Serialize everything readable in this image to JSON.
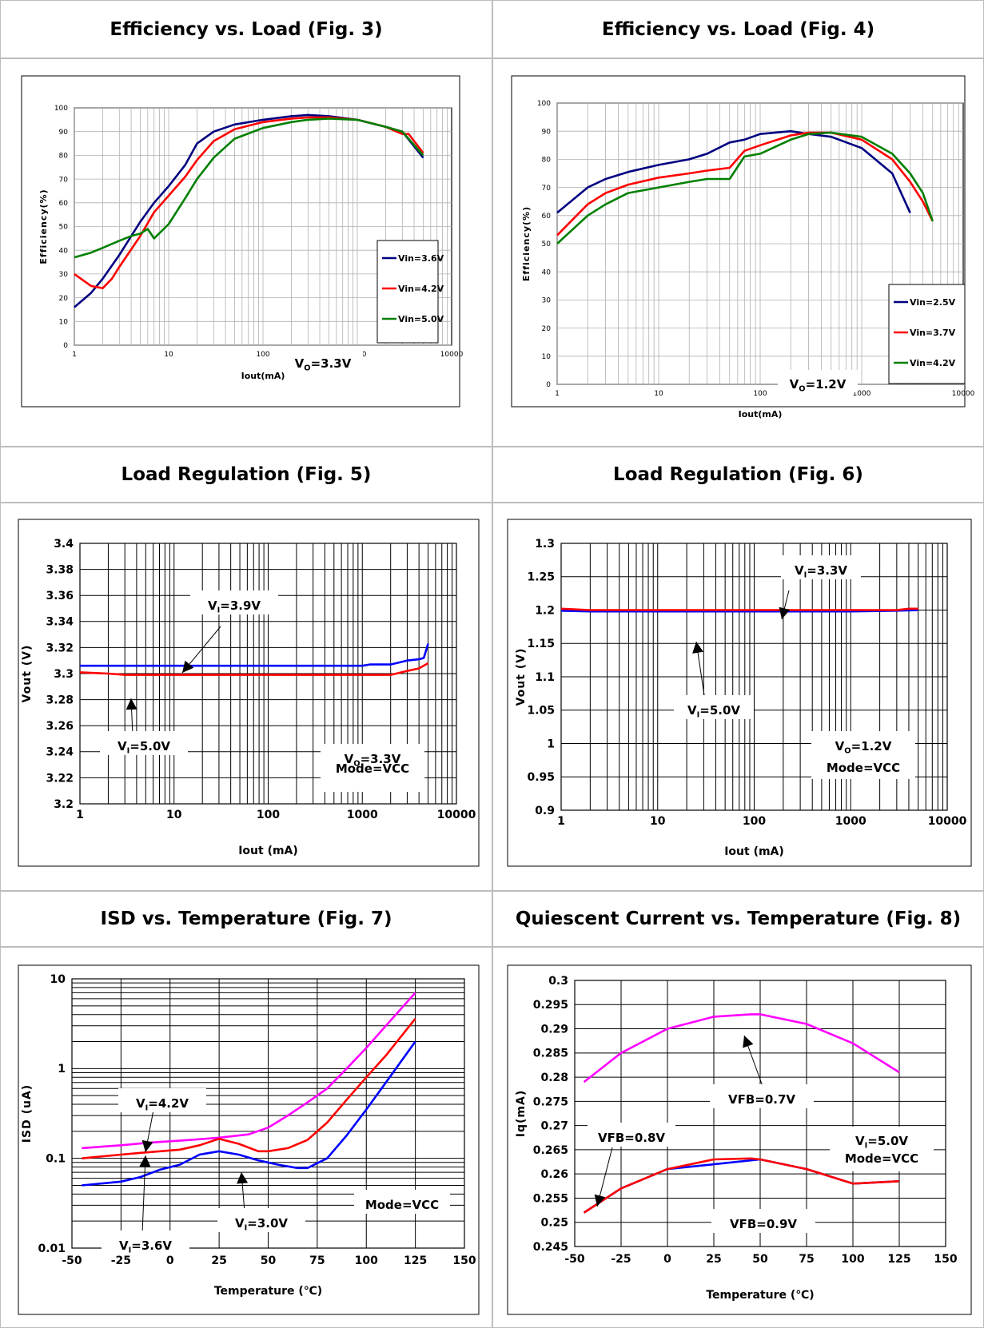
{
  "panels": [
    {
      "title": "Efficiency vs. Load (Fig. 3)",
      "chart": {
        "type": "line",
        "xscale": "log",
        "xlim": [
          1,
          10000
        ],
        "ylim": [
          0,
          100
        ],
        "xticks": [
          1,
          10,
          100,
          1000,
          10000
        ],
        "xtick_labels": [
          "1",
          "10",
          "100",
          "1000",
          "10000"
        ],
        "yticks": [
          0,
          10,
          20,
          30,
          40,
          50,
          60,
          70,
          80,
          90,
          100
        ],
        "ytick_labels": [
          "0",
          "10",
          "20",
          "30",
          "40",
          "50",
          "60",
          "70",
          "80",
          "90",
          "100"
        ],
        "xlabel": "Iout(mA)",
        "ylabel": "Efficiency(%)",
        "grid": true,
        "legend": {
          "placement": "right",
          "entries": [
            "Vin=3.6V",
            "Vin=4.2V",
            "Vin=5.0V"
          ]
        },
        "annotations": [
          {
            "text": "VO=3.3V"
          }
        ],
        "series": [
          {
            "name": "Vin=3.6V",
            "color": "#000080",
            "x": [
              1,
              1.5,
              2,
              3,
              5,
              7,
              10,
              15,
              20,
              30,
              50,
              100,
              200,
              300,
              500,
              1000,
              2000,
              3000,
              5000
            ],
            "y": [
              16,
              22,
              28,
              38,
              52,
              60,
              67,
              76,
              85,
              90,
              93,
              95,
              96.5,
              97,
              96.5,
              95,
              92,
              90,
              79
            ]
          },
          {
            "name": "Vin=4.2V",
            "color": "#ff0000",
            "x": [
              1,
              1.5,
              2,
              2.5,
              3,
              5,
              7,
              10,
              15,
              20,
              30,
              50,
              100,
              200,
              300,
              500,
              1000,
              2000,
              3000,
              3500,
              5000
            ],
            "y": [
              30,
              25,
              24,
              28,
              33,
              46,
              56,
              63,
              71,
              78,
              86,
              91,
              94,
              95.5,
              96,
              96,
              95,
              92,
              89,
              89,
              81
            ]
          },
          {
            "name": "Vin=5.0V",
            "color": "#008000",
            "x": [
              1,
              1.5,
              2,
              3,
              4,
              5,
              6,
              7,
              10,
              15,
              20,
              30,
              50,
              100,
              200,
              300,
              500,
              1000,
              2000,
              3000,
              5000
            ],
            "y": [
              37,
              39,
              41,
              44,
              46,
              47,
              49,
              45,
              51,
              62,
              70,
              79,
              87,
              91.5,
              94,
              95,
              95.5,
              95,
              92,
              90,
              80
            ]
          }
        ]
      }
    },
    {
      "title": "Efficiency vs. Load (Fig. 4)",
      "chart": {
        "type": "line",
        "xscale": "log",
        "xlim": [
          1,
          10000
        ],
        "ylim": [
          0,
          100
        ],
        "xticks": [
          1,
          10,
          100,
          1000,
          10000
        ],
        "xtick_labels": [
          "1",
          "10",
          "100",
          "1000",
          "10000"
        ],
        "yticks": [
          0,
          10,
          20,
          30,
          40,
          50,
          60,
          70,
          80,
          90,
          100
        ],
        "ytick_labels": [
          "0",
          "10",
          "20",
          "30",
          "40",
          "50",
          "60",
          "70",
          "80",
          "90",
          "100"
        ],
        "xlabel": "Iout(mA)",
        "ylabel": "Efficiency(%)",
        "grid": true,
        "legend": {
          "placement": "right",
          "entries": [
            "Vin=2.5V",
            "Vin=3.7V",
            "Vin=4.2V"
          ]
        },
        "annotations": [
          {
            "text": "VO=1.2V"
          }
        ],
        "series": [
          {
            "name": "Vin=2.5V",
            "color": "#000080",
            "x": [
              1,
              2,
              3,
              5,
              10,
              20,
              30,
              50,
              70,
              100,
              200,
              300,
              500,
              1000,
              2000,
              3000
            ],
            "y": [
              61,
              70,
              73,
              75.5,
              78,
              80,
              82,
              86,
              87,
              89,
              90,
              89,
              88,
              84,
              75,
              61
            ]
          },
          {
            "name": "Vin=3.7V",
            "color": "#ff0000",
            "x": [
              1,
              2,
              3,
              5,
              10,
              20,
              30,
              50,
              70,
              100,
              200,
              300,
              500,
              1000,
              2000,
              3000,
              4000,
              5000
            ],
            "y": [
              53,
              64,
              68,
              71,
              73.5,
              75,
              76,
              77,
              83,
              85,
              88.5,
              89.5,
              89.5,
              87,
              80,
              72,
              65,
              58
            ]
          },
          {
            "name": "Vin=4.2V",
            "color": "#008000",
            "x": [
              1,
              2,
              3,
              5,
              10,
              20,
              30,
              50,
              70,
              100,
              200,
              300,
              500,
              1000,
              2000,
              3000,
              4000,
              5000
            ],
            "y": [
              50,
              60,
              64,
              68,
              70,
              72,
              73,
              73,
              81,
              82,
              87,
              89,
              89.5,
              88,
              82,
              75,
              68,
              58
            ]
          }
        ]
      }
    },
    {
      "title": "Load Regulation (Fig. 5)",
      "chart": {
        "type": "line",
        "xscale": "log",
        "xlim": [
          1,
          10000
        ],
        "ylim": [
          3.2,
          3.4
        ],
        "xticks": [
          1,
          10,
          100,
          1000,
          10000
        ],
        "xtick_labels": [
          "1",
          "10",
          "100",
          "1000",
          "10000"
        ],
        "yticks": [
          3.2,
          3.22,
          3.24,
          3.26,
          3.28,
          3.3,
          3.32,
          3.34,
          3.36,
          3.38,
          3.4
        ],
        "ytick_labels": [
          "3.2",
          "3.22",
          "3.24",
          "3.26",
          "3.28",
          "3.3",
          "3.32",
          "3.34",
          "3.36",
          "3.38",
          "3.4"
        ],
        "xlabel": "Iout (mA)",
        "ylabel": "Vout (V)",
        "grid": true,
        "annotations": [
          {
            "text": "VI=3.9V"
          },
          {
            "text": "VI=5.0V"
          },
          {
            "text": "VO=3.3V"
          },
          {
            "text": "Mode=VCC"
          }
        ],
        "series": [
          {
            "name": "VI=3.9V",
            "color": "#0000ff",
            "x": [
              1,
              10,
              100,
              1000,
              1200,
              2000,
              3000,
              4000,
              4500,
              5000
            ],
            "y": [
              3.306,
              3.306,
              3.306,
              3.306,
              3.307,
              3.307,
              3.31,
              3.311,
              3.312,
              3.323
            ]
          },
          {
            "name": "VI=5.0V",
            "color": "#ff0000",
            "x": [
              1,
              2,
              3,
              10,
              100,
              1000,
              2000,
              3000,
              4000,
              5000
            ],
            "y": [
              3.301,
              3.3,
              3.299,
              3.299,
              3.299,
              3.299,
              3.299,
              3.302,
              3.304,
              3.308
            ]
          }
        ]
      }
    },
    {
      "title": "Load Regulation (Fig. 6)",
      "chart": {
        "type": "line",
        "xscale": "log",
        "xlim": [
          1,
          10000
        ],
        "ylim": [
          0.9,
          1.3
        ],
        "xticks": [
          1,
          10,
          100,
          1000,
          10000
        ],
        "xtick_labels": [
          "1",
          "10",
          "100",
          "1000",
          "10000"
        ],
        "yticks": [
          0.9,
          0.95,
          1,
          1.05,
          1.1,
          1.15,
          1.2,
          1.25,
          1.3
        ],
        "ytick_labels": [
          "0.9",
          "0.95",
          "1",
          "1.05",
          "1.1",
          "1.15",
          "1.2",
          "1.25",
          "1.3"
        ],
        "xlabel": "Iout (mA)",
        "ylabel": "Vout (V)",
        "grid": true,
        "annotations": [
          {
            "text": "VI=3.3V"
          },
          {
            "text": "VI=5.0V"
          },
          {
            "text": "VO=1.2V"
          },
          {
            "text": "Mode=VCC"
          }
        ],
        "series": [
          {
            "name": "VI=3.3V",
            "color": "#0000ff",
            "x": [
              1,
              2,
              10,
              100,
              1000,
              3000,
              5000
            ],
            "y": [
              1.199,
              1.198,
              1.198,
              1.198,
              1.198,
              1.199,
              1.2
            ]
          },
          {
            "name": "VI=5.0V",
            "color": "#ff0000",
            "x": [
              1,
              2,
              10,
              100,
              1000,
              3000,
              4000,
              5000
            ],
            "y": [
              1.202,
              1.2,
              1.2,
              1.2,
              1.2,
              1.2,
              1.202,
              1.202
            ]
          }
        ]
      }
    },
    {
      "title": "ISD vs. Temperature (Fig. 7)",
      "chart": {
        "type": "line",
        "yscale": "log",
        "xlim": [
          -50,
          150
        ],
        "ylim": [
          0.01,
          10
        ],
        "xticks": [
          -50,
          -25,
          0,
          25,
          50,
          75,
          100,
          125,
          150
        ],
        "xtick_labels": [
          "-50",
          "-25",
          "0",
          "25",
          "50",
          "75",
          "100",
          "125",
          "150"
        ],
        "yticks": [
          0.01,
          0.1,
          1,
          10
        ],
        "ytick_labels": [
          "0.01",
          "0.1",
          "1",
          "10"
        ],
        "xlabel": "Temperature (℃)",
        "ylabel": "ISD (uA)",
        "grid": true,
        "annotations": [
          {
            "text": "VI=4.2V"
          },
          {
            "text": "VI=3.6V"
          },
          {
            "text": "VI=3.0V"
          },
          {
            "text": "Mode=VCC"
          }
        ],
        "series": [
          {
            "name": "VI=4.2V",
            "color": "#ff00ff",
            "x": [
              -45,
              -25,
              -10,
              0,
              10,
              25,
              40,
              50,
              60,
              70,
              80,
              90,
              100,
              110,
              125
            ],
            "y": [
              0.13,
              0.14,
              0.15,
              0.155,
              0.16,
              0.17,
              0.185,
              0.22,
              0.3,
              0.42,
              0.6,
              1.0,
              1.7,
              3.0,
              7.0
            ]
          },
          {
            "name": "VI=3.6V",
            "color": "#ff0000",
            "x": [
              -45,
              -35,
              -25,
              -15,
              -5,
              5,
              15,
              25,
              35,
              45,
              50,
              60,
              70,
              80,
              90,
              100,
              110,
              125
            ],
            "y": [
              0.1,
              0.105,
              0.11,
              0.115,
              0.12,
              0.125,
              0.14,
              0.165,
              0.145,
              0.12,
              0.12,
              0.13,
              0.16,
              0.25,
              0.45,
              0.8,
              1.4,
              3.6
            ]
          },
          {
            "name": "VI=3.0V",
            "color": "#0000ff",
            "x": [
              -45,
              -25,
              -15,
              -5,
              5,
              15,
              25,
              35,
              45,
              55,
              65,
              70,
              80,
              90,
              100,
              110,
              125
            ],
            "y": [
              0.05,
              0.055,
              0.062,
              0.075,
              0.085,
              0.11,
              0.12,
              0.11,
              0.095,
              0.085,
              0.078,
              0.078,
              0.1,
              0.18,
              0.35,
              0.7,
              2.0
            ]
          }
        ]
      }
    },
    {
      "title": "Quiescent Current vs. Temperature (Fig. 8)",
      "chart": {
        "type": "line",
        "xlim": [
          -50,
          150
        ],
        "ylim": [
          0.245,
          0.3
        ],
        "xticks": [
          -50,
          -25,
          0,
          25,
          50,
          75,
          100,
          125,
          150
        ],
        "xtick_labels": [
          "-50",
          "-25",
          "0",
          "25",
          "50",
          "75",
          "100",
          "125",
          "150"
        ],
        "yticks": [
          0.245,
          0.25,
          0.255,
          0.26,
          0.265,
          0.27,
          0.275,
          0.28,
          0.285,
          0.29,
          0.295,
          0.3
        ],
        "ytick_labels": [
          "0.245",
          "0.25",
          "0.255",
          "0.26",
          "0.265",
          "0.27",
          "0.275",
          "0.28",
          "0.285",
          "0.29",
          "0.295",
          "0.3"
        ],
        "xlabel": "Temperature (℃)",
        "ylabel": "Iq(mA)",
        "grid": true,
        "annotations": [
          {
            "text": "VFB=0.7V"
          },
          {
            "text": "VFB=0.8V"
          },
          {
            "text": "VFB=0.9V"
          },
          {
            "text": "VI=5.0V"
          },
          {
            "text": "Mode=VCC"
          }
        ],
        "series": [
          {
            "name": "VFB=0.7V",
            "color": "#ff00ff",
            "x": [
              -45,
              -25,
              0,
              25,
              45,
              50,
              75,
              100,
              125
            ],
            "y": [
              0.279,
              0.285,
              0.29,
              0.2925,
              0.293,
              0.293,
              0.291,
              0.287,
              0.281
            ]
          },
          {
            "name": "VFB=0.8V",
            "color": "#0000ff",
            "x": [
              -45,
              -25,
              0,
              25,
              50,
              75,
              100,
              125
            ],
            "y": [
              0.252,
              0.257,
              0.261,
              0.262,
              0.263,
              0.261,
              0.258,
              0.2585
            ]
          },
          {
            "name": "VFB=0.9V",
            "color": "#ff0000",
            "x": [
              -45,
              -25,
              0,
              25,
              45,
              50,
              75,
              100,
              125
            ],
            "y": [
              0.252,
              0.257,
              0.261,
              0.263,
              0.2632,
              0.263,
              0.261,
              0.258,
              0.2585
            ]
          }
        ]
      }
    }
  ]
}
